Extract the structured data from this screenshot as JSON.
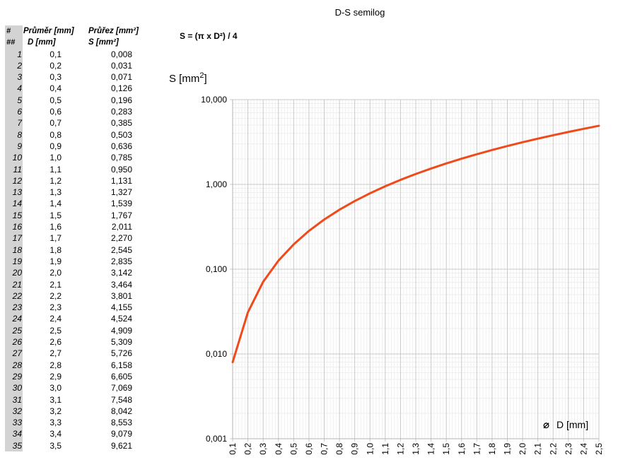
{
  "chart_data": {
    "type": "line",
    "title": "D-S semilog",
    "formula": "S = (π x D²) / 4",
    "xlabel": "D [mm]",
    "ylabel": "S [mm²]",
    "ylabel_base": "S [mm",
    "ylabel_sup": "2",
    "ylabel_end": "]",
    "xlabel_symbol": "⌀",
    "x_scale": "linear",
    "y_scale": "log",
    "xlim": [
      0.1,
      2.5
    ],
    "ylim": [
      0.001,
      10
    ],
    "grid": true,
    "line_color": "#f04a1a",
    "x_tick_labels": [
      "0,1",
      "0,2",
      "0,3",
      "0,4",
      "0,5",
      "0,6",
      "0,7",
      "0,8",
      "0,9",
      "1,0",
      "1,1",
      "1,2",
      "1,3",
      "1,4",
      "1,5",
      "1,6",
      "1,7",
      "1,8",
      "1,9",
      "2,0",
      "2,1",
      "2,2",
      "2,3",
      "2,4",
      "2,5"
    ],
    "y_tick_labels": [
      "0,001",
      "0,010",
      "0,100",
      "1,000",
      "10,000"
    ],
    "y_tick_values": [
      0.001,
      0.01,
      0.1,
      1,
      10
    ],
    "series": [
      {
        "x": [
          0.1,
          0.2,
          0.3,
          0.4,
          0.5,
          0.6,
          0.7,
          0.8,
          0.9,
          1.0,
          1.1,
          1.2,
          1.3,
          1.4,
          1.5,
          1.6,
          1.7,
          1.8,
          1.9,
          2.0,
          2.1,
          2.2,
          2.3,
          2.4,
          2.5
        ],
        "y": [
          0.008,
          0.031,
          0.071,
          0.126,
          0.196,
          0.283,
          0.385,
          0.503,
          0.636,
          0.785,
          0.95,
          1.131,
          1.327,
          1.539,
          1.767,
          2.011,
          2.27,
          2.545,
          2.835,
          3.142,
          3.464,
          3.801,
          4.155,
          4.524,
          4.909
        ]
      }
    ]
  },
  "table": {
    "headers": {
      "col0_line1": "#",
      "col0_line2": "##",
      "col1_line1": "Průměr [mm]",
      "col1_line2": "D [mm]",
      "col2_line1": "Průřez [mm²]",
      "col2_line2": "S [mm²]"
    },
    "rows": [
      [
        "1",
        "0,1",
        "0,008"
      ],
      [
        "2",
        "0,2",
        "0,031"
      ],
      [
        "3",
        "0,3",
        "0,071"
      ],
      [
        "4",
        "0,4",
        "0,126"
      ],
      [
        "5",
        "0,5",
        "0,196"
      ],
      [
        "6",
        "0,6",
        "0,283"
      ],
      [
        "7",
        "0,7",
        "0,385"
      ],
      [
        "8",
        "0,8",
        "0,503"
      ],
      [
        "9",
        "0,9",
        "0,636"
      ],
      [
        "10",
        "1,0",
        "0,785"
      ],
      [
        "11",
        "1,1",
        "0,950"
      ],
      [
        "12",
        "1,2",
        "1,131"
      ],
      [
        "13",
        "1,3",
        "1,327"
      ],
      [
        "14",
        "1,4",
        "1,539"
      ],
      [
        "15",
        "1,5",
        "1,767"
      ],
      [
        "16",
        "1,6",
        "2,011"
      ],
      [
        "17",
        "1,7",
        "2,270"
      ],
      [
        "18",
        "1,8",
        "2,545"
      ],
      [
        "19",
        "1,9",
        "2,835"
      ],
      [
        "20",
        "2,0",
        "3,142"
      ],
      [
        "21",
        "2,1",
        "3,464"
      ],
      [
        "22",
        "2,2",
        "3,801"
      ],
      [
        "23",
        "2,3",
        "4,155"
      ],
      [
        "24",
        "2,4",
        "4,524"
      ],
      [
        "25",
        "2,5",
        "4,909"
      ],
      [
        "26",
        "2,6",
        "5,309"
      ],
      [
        "27",
        "2,7",
        "5,726"
      ],
      [
        "28",
        "2,8",
        "6,158"
      ],
      [
        "29",
        "2,9",
        "6,605"
      ],
      [
        "30",
        "3,0",
        "7,069"
      ],
      [
        "31",
        "3,1",
        "7,548"
      ],
      [
        "32",
        "3,2",
        "8,042"
      ],
      [
        "33",
        "3,3",
        "8,553"
      ],
      [
        "34",
        "3,4",
        "9,079"
      ],
      [
        "35",
        "3,5",
        "9,621"
      ]
    ]
  }
}
